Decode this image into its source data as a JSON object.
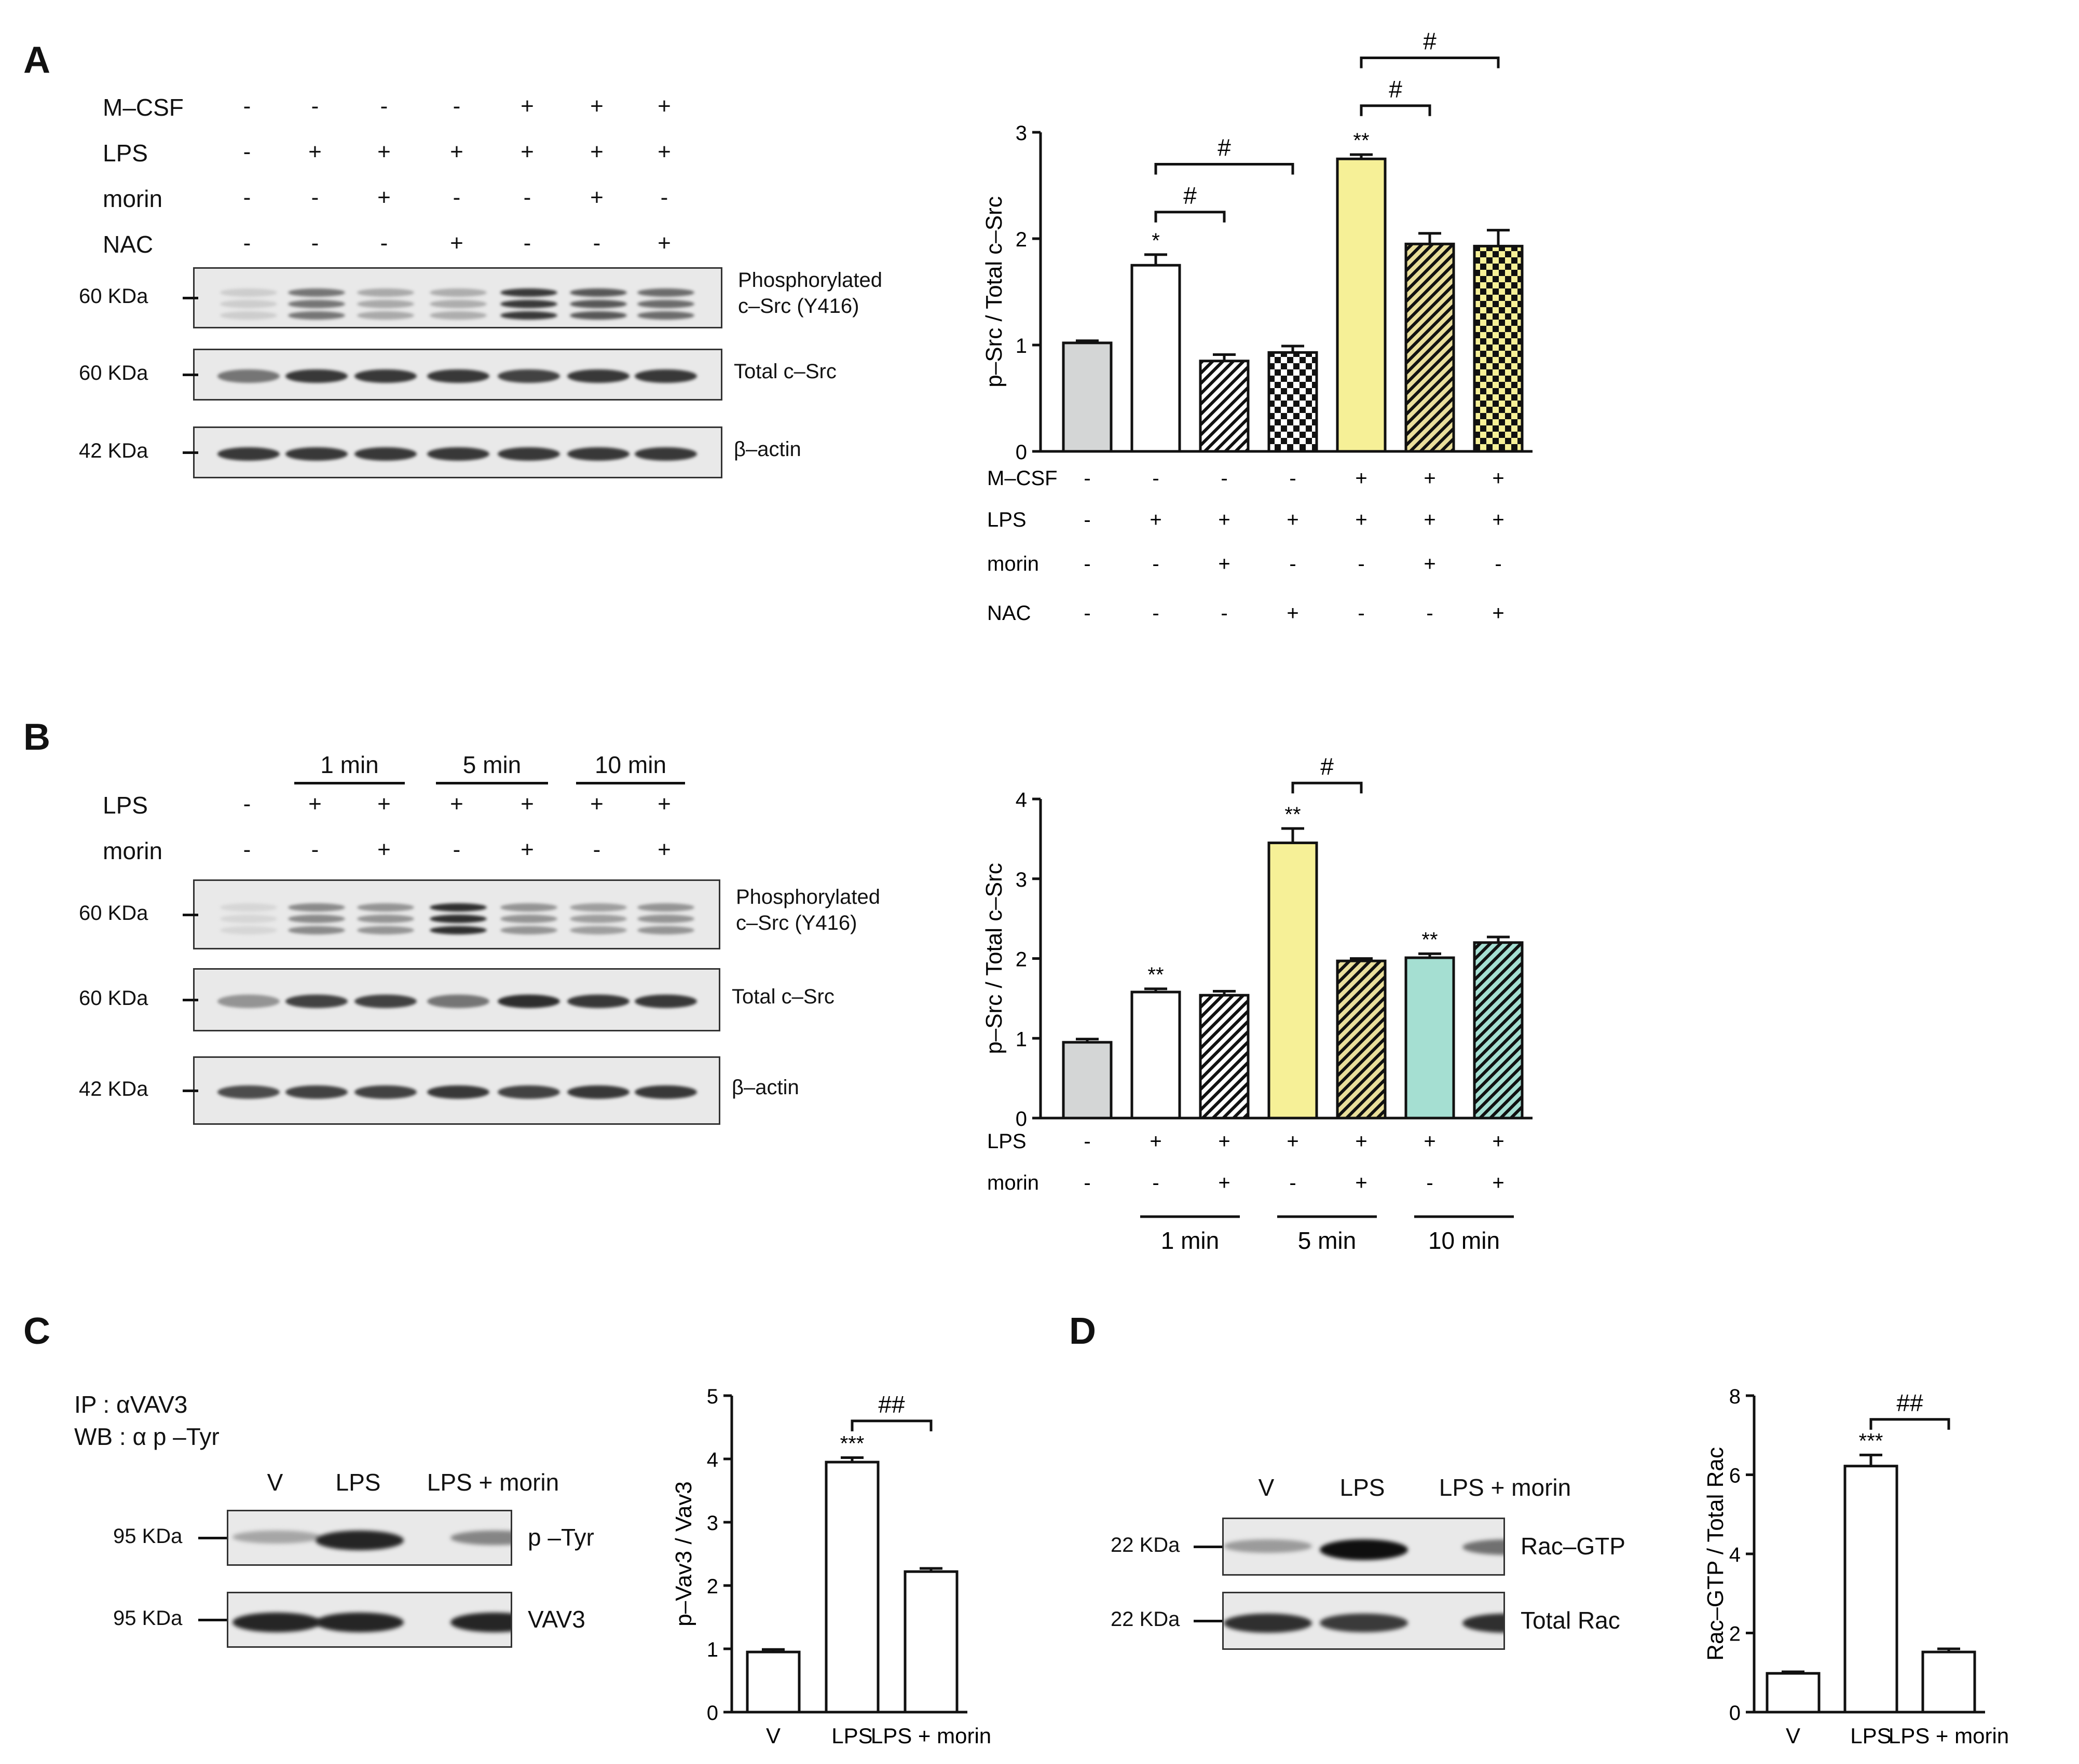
{
  "panels": {
    "A": {
      "letter": "A",
      "rows": [
        {
          "name": "M–CSF",
          "signs": [
            "-",
            "-",
            "-",
            "-",
            "+",
            "+",
            "+"
          ]
        },
        {
          "name": "LPS",
          "signs": [
            "-",
            "+",
            "+",
            "+",
            "+",
            "+",
            "+"
          ]
        },
        {
          "name": "morin",
          "signs": [
            "-",
            "-",
            "+",
            "-",
            "-",
            "+",
            "-"
          ]
        },
        {
          "name": "NAC",
          "signs": [
            "-",
            "-",
            "-",
            "+",
            "-",
            "-",
            "+"
          ]
        }
      ],
      "blots": [
        {
          "mw": "60 KDa",
          "label1": "Phosphorylated",
          "label2": "c–Src (Y416)",
          "intensity": [
            0.12,
            0.55,
            0.3,
            0.28,
            0.85,
            0.7,
            0.6
          ],
          "triple": true
        },
        {
          "mw": "60 KDa",
          "label1": "Total c–Src",
          "label2": "",
          "intensity": [
            0.55,
            0.85,
            0.85,
            0.85,
            0.8,
            0.85,
            0.85
          ],
          "triple": false
        },
        {
          "mw": "42 KDa",
          "label1": "β–actin",
          "label2": "",
          "intensity": [
            0.85,
            0.85,
            0.85,
            0.85,
            0.85,
            0.85,
            0.85
          ],
          "triple": false
        }
      ],
      "chart_rows": [
        {
          "name": "M–CSF",
          "signs": [
            "-",
            "-",
            "-",
            "-",
            "+",
            "+",
            "+"
          ]
        },
        {
          "name": "LPS",
          "signs": [
            "-",
            "+",
            "+",
            "+",
            "+",
            "+",
            "+"
          ]
        },
        {
          "name": "morin",
          "signs": [
            "-",
            "-",
            "+",
            "-",
            "-",
            "+",
            "-"
          ]
        },
        {
          "name": "NAC",
          "signs": [
            "-",
            "-",
            "-",
            "+",
            "-",
            "-",
            "+"
          ]
        }
      ]
    },
    "B": {
      "letter": "B",
      "time_groups": [
        "1 min",
        "5 min",
        "10 min"
      ],
      "rows": [
        {
          "name": "LPS",
          "signs": [
            "-",
            "+",
            "+",
            "+",
            "+",
            "+",
            "+"
          ]
        },
        {
          "name": "morin",
          "signs": [
            "-",
            "-",
            "+",
            "-",
            "+",
            "-",
            "+"
          ]
        }
      ],
      "blots": [
        {
          "mw": "60 KDa",
          "label1": "Phosphorylated",
          "label2": "c–Src (Y416)",
          "intensity": [
            0.08,
            0.45,
            0.4,
            0.9,
            0.4,
            0.35,
            0.4
          ],
          "triple": true
        },
        {
          "mw": "60 KDa",
          "label1": "Total c–Src",
          "label2": "",
          "intensity": [
            0.4,
            0.8,
            0.8,
            0.55,
            0.9,
            0.85,
            0.85
          ],
          "triple": false
        },
        {
          "mw": "42 KDa",
          "label1": "β–actin",
          "label2": "",
          "intensity": [
            0.75,
            0.8,
            0.8,
            0.85,
            0.8,
            0.85,
            0.85
          ],
          "triple": false
        }
      ],
      "chart_rows": [
        {
          "name": "LPS",
          "signs": [
            "-",
            "+",
            "+",
            "+",
            "+",
            "+",
            "+"
          ]
        },
        {
          "name": "morin",
          "signs": [
            "-",
            "-",
            "+",
            "-",
            "+",
            "-",
            "+"
          ]
        }
      ],
      "chart_time_groups": [
        "1 min",
        "5 min",
        "10 min"
      ]
    },
    "C": {
      "letter": "C",
      "ip_line1": "IP : αVAV3",
      "ip_line2": "WB : α p –Tyr",
      "lanes": [
        "V",
        "LPS",
        "LPS + morin"
      ],
      "blots": [
        {
          "mw": "95 KDa",
          "label1": "p –Tyr",
          "intensity": [
            0.3,
            0.9,
            0.45
          ]
        },
        {
          "mw": "95 KDa",
          "label1": "VAV3",
          "intensity": [
            0.9,
            0.9,
            0.9
          ]
        }
      ]
    },
    "D": {
      "letter": "D",
      "lanes": [
        "V",
        "LPS",
        "LPS + morin"
      ],
      "blots": [
        {
          "mw": "22 KDa",
          "label1": "Rac–GTP",
          "intensity": [
            0.35,
            1.0,
            0.55
          ]
        },
        {
          "mw": "22 KDa",
          "label1": "Total Rac",
          "intensity": [
            0.85,
            0.8,
            0.85
          ]
        }
      ]
    }
  },
  "chart_data": [
    {
      "id": "A",
      "type": "bar",
      "ylabel": "p–Src / Total c–Src",
      "ylim": [
        0,
        3
      ],
      "yticks": [
        0,
        1,
        2,
        3
      ],
      "values": [
        1.02,
        1.75,
        0.85,
        0.93,
        2.75,
        1.95,
        1.93
      ],
      "errors": [
        0.02,
        0.1,
        0.06,
        0.06,
        0.04,
        0.1,
        0.15
      ],
      "fills": [
        "#d4d6d6",
        "#ffffff",
        "#ffffff",
        "#ffffff",
        "#f6f097",
        "#e9de9b",
        "#f6f097"
      ],
      "patterns": [
        "solid",
        "solid",
        "hatch",
        "checker",
        "solid",
        "hatch",
        "checker"
      ],
      "stars": [
        "",
        "*",
        "",
        "",
        "**",
        "",
        ""
      ],
      "brackets": [
        {
          "from": 1,
          "to": 2,
          "level": 2.25,
          "label": "#"
        },
        {
          "from": 1,
          "to": 3,
          "level": 2.7,
          "label": "#"
        },
        {
          "from": 4,
          "to": 5,
          "level": 3.25,
          "label": "#"
        },
        {
          "from": 4,
          "to": 6,
          "level": 3.7,
          "label": "#"
        }
      ]
    },
    {
      "id": "B",
      "type": "bar",
      "ylabel": "p–Src / Total c–Src",
      "ylim": [
        0,
        4
      ],
      "yticks": [
        0,
        1,
        2,
        3,
        4
      ],
      "values": [
        0.95,
        1.58,
        1.54,
        3.45,
        1.97,
        2.01,
        2.2
      ],
      "errors": [
        0.04,
        0.04,
        0.05,
        0.18,
        0.03,
        0.05,
        0.07
      ],
      "fills": [
        "#d4d6d6",
        "#ffffff",
        "#ffffff",
        "#f6f097",
        "#e9de9b",
        "#a5dfd2",
        "#a5dfd2"
      ],
      "patterns": [
        "solid",
        "solid",
        "hatch",
        "solid",
        "hatch",
        "solid",
        "hatch"
      ],
      "stars": [
        "",
        "**",
        "",
        "**",
        "",
        "**",
        ""
      ],
      "brackets": [
        {
          "from": 3,
          "to": 4,
          "level": 4.2,
          "label": "#"
        }
      ]
    },
    {
      "id": "C",
      "type": "bar",
      "ylabel": "p–Vav3 / Vav3",
      "ylim": [
        0,
        5
      ],
      "yticks": [
        0,
        1,
        2,
        3,
        4,
        5
      ],
      "categories": [
        "V",
        "LPS",
        "LPS + morin"
      ],
      "values": [
        0.95,
        3.95,
        2.22
      ],
      "errors": [
        0.04,
        0.07,
        0.05
      ],
      "stars": [
        "",
        "***",
        ""
      ],
      "brackets": [
        {
          "from": 1,
          "to": 2,
          "level": 4.6,
          "label": "##"
        }
      ]
    },
    {
      "id": "D",
      "type": "bar",
      "ylabel": "Rac–GTP / Total Rac",
      "ylim": [
        0,
        8
      ],
      "yticks": [
        0,
        2,
        4,
        6,
        8
      ],
      "categories": [
        "V",
        "LPS",
        "LPS + morin"
      ],
      "values": [
        0.98,
        6.22,
        1.52
      ],
      "errors": [
        0.04,
        0.28,
        0.08
      ],
      "stars": [
        "",
        "***",
        ""
      ],
      "brackets": [
        {
          "from": 1,
          "to": 2,
          "level": 7.4,
          "label": "##"
        }
      ]
    }
  ]
}
